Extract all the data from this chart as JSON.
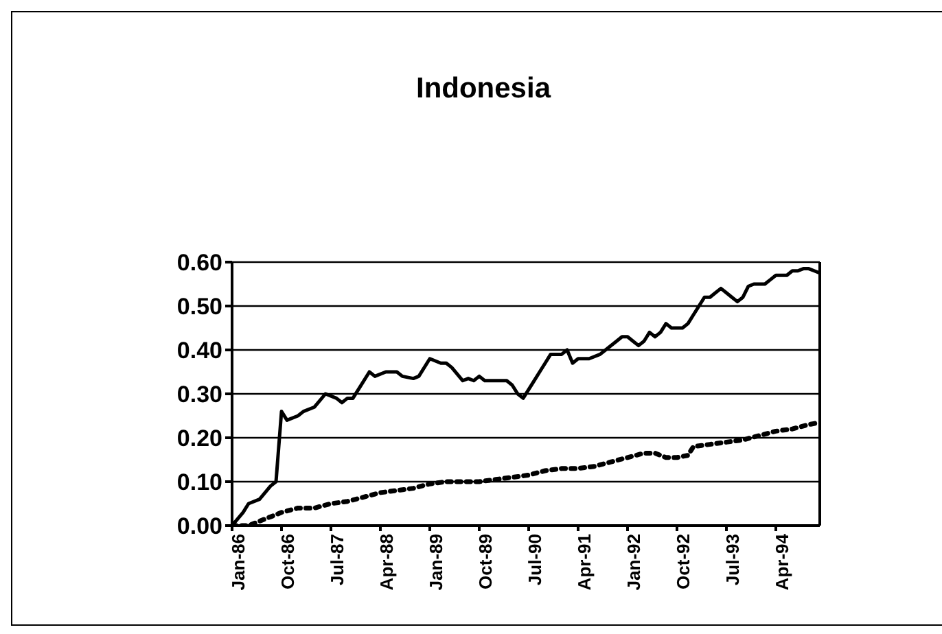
{
  "chart_data": {
    "type": "line",
    "title": "Indonesia",
    "xlim": [
      "1986-01",
      "1994-12"
    ],
    "xticks": [
      {
        "value": "1986-01",
        "label": "Jan-86"
      },
      {
        "value": "1986-10",
        "label": "Oct-86"
      },
      {
        "value": "1987-07",
        "label": "Jul-87"
      },
      {
        "value": "1988-04",
        "label": "Apr-88"
      },
      {
        "value": "1989-01",
        "label": "Jan-89"
      },
      {
        "value": "1989-10",
        "label": "Oct-89"
      },
      {
        "value": "1990-07",
        "label": "Jul-90"
      },
      {
        "value": "1991-04",
        "label": "Apr-91"
      },
      {
        "value": "1992-01",
        "label": "Jan-92"
      },
      {
        "value": "1992-10",
        "label": "Oct-92"
      },
      {
        "value": "1993-07",
        "label": "Jul-93"
      },
      {
        "value": "1994-04",
        "label": "Apr-94"
      }
    ],
    "ylim": [
      0,
      0.6
    ],
    "yticks": [
      {
        "value": 0,
        "label": "0.00"
      },
      {
        "value": 0.1,
        "label": "0.10"
      },
      {
        "value": 0.2,
        "label": "0.20"
      },
      {
        "value": 0.3,
        "label": "0.30"
      },
      {
        "value": 0.4,
        "label": "0.40"
      },
      {
        "value": 0.5,
        "label": "0.50"
      },
      {
        "value": 0.6,
        "label": "0.60"
      }
    ],
    "grid": "y",
    "legend": false,
    "marker": "none",
    "series": [
      {
        "color": "#000000",
        "line_style": "solid",
        "x": [
          "1986-01",
          "1986-03",
          "1986-04",
          "1986-06",
          "1986-08",
          "1986-09",
          "1986-10",
          "1986-11",
          "1987-01",
          "1987-02",
          "1987-04",
          "1987-06",
          "1987-08",
          "1987-09",
          "1987-10",
          "1987-11",
          "1987-12",
          "1988-02",
          "1988-03",
          "1988-05",
          "1988-07",
          "1988-08",
          "1988-10",
          "1988-11",
          "1989-01",
          "1989-03",
          "1989-04",
          "1989-05",
          "1989-07",
          "1989-08",
          "1989-09",
          "1989-10",
          "1989-11",
          "1990-01",
          "1990-03",
          "1990-04",
          "1990-05",
          "1990-06",
          "1990-07",
          "1990-08",
          "1990-09",
          "1990-10",
          "1990-11",
          "1990-12",
          "1991-01",
          "1991-02",
          "1991-03",
          "1991-04",
          "1991-06",
          "1991-08",
          "1991-09",
          "1991-11",
          "1991-12",
          "1992-01",
          "1992-02",
          "1992-03",
          "1992-04",
          "1992-05",
          "1992-06",
          "1992-07",
          "1992-08",
          "1992-09",
          "1992-10",
          "1992-11",
          "1992-12",
          "1993-01",
          "1993-02",
          "1993-03",
          "1993-04",
          "1993-05",
          "1993-06",
          "1993-07",
          "1993-08",
          "1993-09",
          "1993-10",
          "1993-11",
          "1993-12",
          "1994-01",
          "1994-02",
          "1994-03",
          "1994-04",
          "1994-05",
          "1994-06",
          "1994-07",
          "1994-08",
          "1994-09",
          "1994-10",
          "1994-11",
          "1994-12"
        ],
        "values": [
          0.0,
          0.03,
          0.05,
          0.06,
          0.09,
          0.1,
          0.26,
          0.24,
          0.25,
          0.26,
          0.27,
          0.3,
          0.29,
          0.28,
          0.29,
          0.29,
          0.31,
          0.35,
          0.34,
          0.35,
          0.35,
          0.34,
          0.335,
          0.34,
          0.38,
          0.37,
          0.37,
          0.36,
          0.33,
          0.335,
          0.33,
          0.34,
          0.33,
          0.33,
          0.33,
          0.32,
          0.3,
          0.29,
          0.31,
          0.33,
          0.35,
          0.37,
          0.39,
          0.39,
          0.39,
          0.4,
          0.37,
          0.38,
          0.38,
          0.39,
          0.4,
          0.42,
          0.43,
          0.43,
          0.42,
          0.41,
          0.42,
          0.44,
          0.43,
          0.44,
          0.46,
          0.45,
          0.45,
          0.45,
          0.46,
          0.48,
          0.5,
          0.52,
          0.52,
          0.53,
          0.54,
          0.53,
          0.52,
          0.51,
          0.52,
          0.545,
          0.55,
          0.55,
          0.55,
          0.56,
          0.57,
          0.57,
          0.57,
          0.58,
          0.58,
          0.585,
          0.585,
          0.58,
          0.575
        ]
      },
      {
        "color": "#000000",
        "line_style": "dotted",
        "x": [
          "1986-01",
          "1986-04",
          "1986-06",
          "1986-08",
          "1986-10",
          "1987-01",
          "1987-04",
          "1987-07",
          "1987-10",
          "1988-01",
          "1988-04",
          "1988-07",
          "1988-10",
          "1989-01",
          "1989-04",
          "1989-07",
          "1989-10",
          "1990-01",
          "1990-04",
          "1990-07",
          "1990-10",
          "1991-01",
          "1991-04",
          "1991-07",
          "1991-10",
          "1992-01",
          "1992-04",
          "1992-06",
          "1992-08",
          "1992-10",
          "1992-12",
          "1993-01",
          "1993-04",
          "1993-07",
          "1993-10",
          "1994-01",
          "1994-04",
          "1994-07",
          "1994-10",
          "1994-12"
        ],
        "values": [
          0.0,
          0.0,
          0.01,
          0.02,
          0.03,
          0.04,
          0.04,
          0.05,
          0.055,
          0.065,
          0.075,
          0.08,
          0.085,
          0.095,
          0.1,
          0.1,
          0.1,
          0.105,
          0.11,
          0.115,
          0.125,
          0.13,
          0.13,
          0.135,
          0.145,
          0.155,
          0.165,
          0.165,
          0.155,
          0.155,
          0.16,
          0.18,
          0.185,
          0.19,
          0.195,
          0.205,
          0.215,
          0.22,
          0.23,
          0.235
        ]
      }
    ]
  }
}
